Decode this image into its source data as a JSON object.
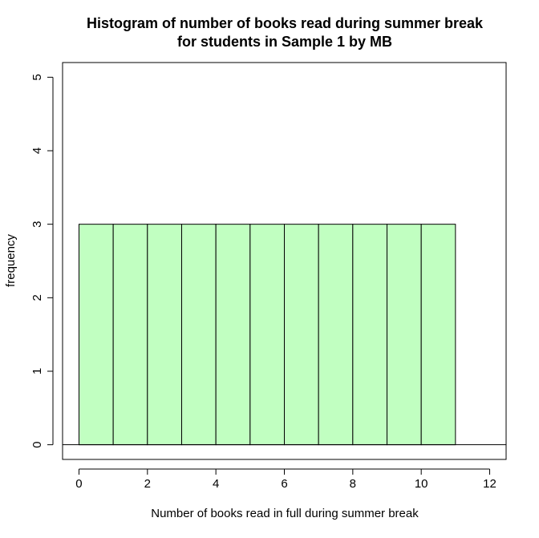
{
  "chart_data": {
    "type": "histogram",
    "title": [
      "Histogram of number of books read during summer break",
      "for students in Sample 1 by MB"
    ],
    "xlabel": "Number of books read in full during summer break",
    "ylabel": "frequency",
    "bins": [
      0,
      1,
      2,
      3,
      4,
      5,
      6,
      7,
      8,
      9,
      10,
      11
    ],
    "counts": [
      3,
      3,
      3,
      3,
      3,
      3,
      3,
      3,
      3,
      3,
      3
    ],
    "color": "#c1ffc1",
    "xlim": [
      -0.48,
      12.48
    ],
    "ylim": [
      -0.2,
      5.2
    ],
    "xticks": [
      0,
      2,
      4,
      6,
      8,
      10,
      12
    ],
    "yticks": [
      0,
      1,
      2,
      3,
      4,
      5
    ]
  }
}
